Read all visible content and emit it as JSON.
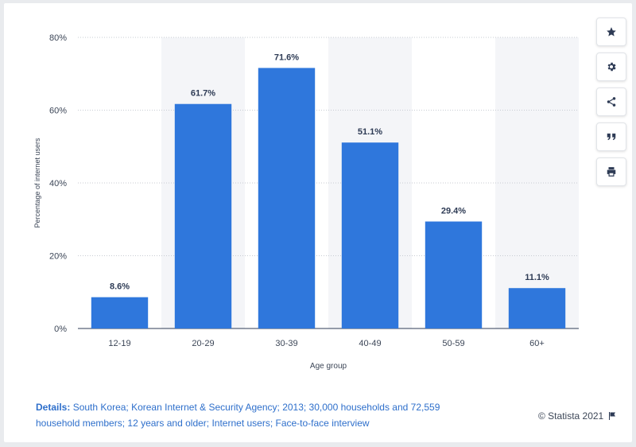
{
  "chart_data": {
    "type": "bar",
    "categories": [
      "12-19",
      "20-29",
      "30-39",
      "40-49",
      "50-59",
      "60+"
    ],
    "values": [
      8.6,
      61.7,
      71.6,
      51.1,
      29.4,
      11.1
    ],
    "value_labels": [
      "8.6%",
      "61.7%",
      "71.6%",
      "51.1%",
      "29.4%",
      "11.1%"
    ],
    "xlabel": "Age group",
    "ylabel": "Percentage of internet users",
    "ylim": [
      0,
      80
    ],
    "yticks": [
      0,
      20,
      40,
      60,
      80
    ],
    "ytick_labels": [
      "0%",
      "20%",
      "40%",
      "60%",
      "80%"
    ],
    "grid": true,
    "bar_color": "#2f77dc"
  },
  "toolbar": {
    "items": [
      {
        "name": "favorite",
        "icon": "star-icon"
      },
      {
        "name": "settings",
        "icon": "gear-icon"
      },
      {
        "name": "share",
        "icon": "share-icon"
      },
      {
        "name": "cite",
        "icon": "quote-icon"
      },
      {
        "name": "print",
        "icon": "print-icon"
      }
    ]
  },
  "footer": {
    "details_label": "Details:",
    "details_text": "South Korea; Korean Internet & Security Agency; 2013; 30,000 households and 72,559 household members; 12 years and older; Internet users; Face-to-face interview",
    "copyright": "© Statista 2021"
  },
  "colors": {
    "accent": "#2f77dc",
    "band": "#f4f5f8",
    "text": "#3c4657"
  }
}
